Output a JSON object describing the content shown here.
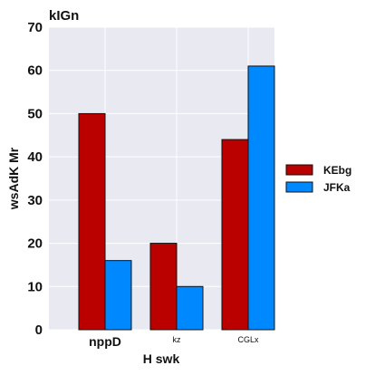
{
  "chart_data": {
    "type": "bar",
    "title": "kIGn",
    "xlabel": "H  swk",
    "ylabel": "wsAdK  Mr",
    "categories": [
      "nppD",
      "kz",
      "CGLx"
    ],
    "category_label_sizes": [
      "large",
      "small",
      "small"
    ],
    "series": [
      {
        "name": "KEbg",
        "values": [
          50,
          20,
          44
        ],
        "color": "#bb0000"
      },
      {
        "name": "JFKa",
        "values": [
          16,
          10,
          61
        ],
        "color": "#0088ff"
      }
    ],
    "ylim": [
      0,
      70
    ],
    "yticks": [
      0,
      10,
      20,
      30,
      40,
      50,
      60,
      70
    ],
    "grid": true,
    "background": "#e9e9f1",
    "legend_position": "right"
  }
}
